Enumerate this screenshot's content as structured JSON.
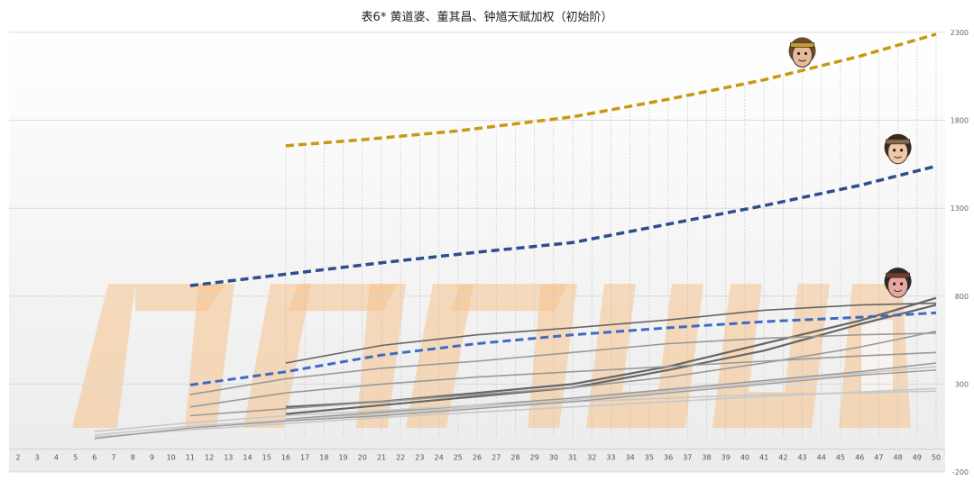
{
  "chart_data": {
    "type": "line",
    "title": "表6* 黄道婆、董其昌、钟馗天赋加权（初始阶）",
    "xlabel": "",
    "ylabel": "",
    "ylim": [
      -200,
      2300
    ],
    "yticks": [
      2300,
      1800,
      1300,
      800,
      300,
      -200
    ],
    "x": [
      2,
      3,
      4,
      5,
      6,
      7,
      8,
      9,
      10,
      11,
      12,
      13,
      14,
      15,
      16,
      17,
      18,
      19,
      20,
      21,
      22,
      23,
      24,
      25,
      26,
      27,
      28,
      29,
      30,
      31,
      32,
      33,
      34,
      35,
      36,
      37,
      38,
      39,
      40,
      41,
      42,
      43,
      44,
      45,
      46,
      47,
      48,
      49,
      50
    ],
    "grid": "vertical dotted lines from x=16 to x=50 under the top series; horizontal gridlines at y ticks",
    "legend": "none",
    "watermark": "WANGYUWEN-style stylized orange watermark lettering (decorative)",
    "colors": {
      "gold": "#C8980F",
      "navy": "#2D4E8E",
      "blue": "#3F6AC4",
      "gray_dark": "#666666",
      "gray_mid": "#999999",
      "gray_light": "#C8C8C8"
    },
    "series": [
      {
        "color": "gold",
        "style": "dashed",
        "width": 3.5,
        "points": [
          [
            16,
            1655
          ],
          [
            20,
            1690
          ],
          [
            25,
            1740
          ],
          [
            31,
            1820
          ],
          [
            36,
            1920
          ],
          [
            41,
            2030
          ],
          [
            46,
            2165
          ],
          [
            50,
            2290
          ]
        ]
      },
      {
        "color": "navy",
        "style": "dashed",
        "width": 3.5,
        "points": [
          [
            11,
            860
          ],
          [
            16,
            925
          ],
          [
            21,
            990
          ],
          [
            26,
            1050
          ],
          [
            31,
            1105
          ],
          [
            36,
            1210
          ],
          [
            41,
            1315
          ],
          [
            46,
            1430
          ],
          [
            50,
            1540
          ]
        ]
      },
      {
        "color": "blue",
        "style": "dashed",
        "width": 3,
        "points": [
          [
            11,
            295
          ],
          [
            16,
            370
          ],
          [
            21,
            465
          ],
          [
            26,
            530
          ],
          [
            31,
            580
          ],
          [
            36,
            620
          ],
          [
            41,
            655
          ],
          [
            46,
            680
          ],
          [
            50,
            705
          ]
        ]
      },
      {
        "color": "gray_dark",
        "style": "solid",
        "width": 1.6,
        "points": [
          [
            16,
            420
          ],
          [
            21,
            520
          ],
          [
            26,
            580
          ],
          [
            31,
            620
          ],
          [
            36,
            665
          ],
          [
            41,
            720
          ],
          [
            46,
            750
          ],
          [
            50,
            760
          ]
        ]
      },
      {
        "color": "gray_dark",
        "style": "solid",
        "width": 2.2,
        "points": [
          [
            16,
            170
          ],
          [
            21,
            200
          ],
          [
            26,
            250
          ],
          [
            31,
            300
          ],
          [
            36,
            400
          ],
          [
            41,
            530
          ],
          [
            46,
            660
          ],
          [
            50,
            790
          ]
        ]
      },
      {
        "color": "gray_dark",
        "style": "solid",
        "width": 2.2,
        "points": [
          [
            16,
            130
          ],
          [
            21,
            180
          ],
          [
            26,
            230
          ],
          [
            31,
            280
          ],
          [
            36,
            380
          ],
          [
            41,
            490
          ],
          [
            46,
            640
          ],
          [
            50,
            750
          ]
        ]
      },
      {
        "color": "gray_mid",
        "style": "solid",
        "width": 1.6,
        "points": [
          [
            11,
            240
          ],
          [
            16,
            330
          ],
          [
            21,
            390
          ],
          [
            26,
            430
          ],
          [
            31,
            480
          ],
          [
            36,
            530
          ],
          [
            41,
            560
          ],
          [
            46,
            580
          ],
          [
            50,
            590
          ]
        ]
      },
      {
        "color": "gray_mid",
        "style": "solid",
        "width": 1.6,
        "points": [
          [
            11,
            170
          ],
          [
            16,
            250
          ],
          [
            21,
            300
          ],
          [
            26,
            340
          ],
          [
            31,
            370
          ],
          [
            36,
            400
          ],
          [
            41,
            430
          ],
          [
            46,
            460
          ],
          [
            50,
            480
          ]
        ]
      },
      {
        "color": "gray_mid",
        "style": "solid",
        "width": 1.6,
        "points": [
          [
            11,
            120
          ],
          [
            16,
            160
          ],
          [
            21,
            200
          ],
          [
            26,
            240
          ],
          [
            31,
            280
          ],
          [
            36,
            340
          ],
          [
            41,
            420
          ],
          [
            46,
            510
          ],
          [
            50,
            600
          ]
        ]
      },
      {
        "color": "gray_mid",
        "style": "solid",
        "width": 1.6,
        "points": [
          [
            16,
            100
          ],
          [
            21,
            140
          ],
          [
            26,
            180
          ],
          [
            31,
            220
          ],
          [
            36,
            270
          ],
          [
            41,
            320
          ],
          [
            46,
            370
          ],
          [
            50,
            420
          ]
        ]
      },
      {
        "color": "gray_light",
        "style": "solid",
        "width": 1.6,
        "points": [
          [
            6,
            10
          ],
          [
            11,
            60
          ],
          [
            16,
            95
          ],
          [
            21,
            130
          ],
          [
            26,
            170
          ],
          [
            31,
            210
          ],
          [
            36,
            260
          ],
          [
            41,
            310
          ],
          [
            46,
            360
          ],
          [
            50,
            400
          ]
        ]
      },
      {
        "color": "gray_light",
        "style": "solid",
        "width": 1.6,
        "points": [
          [
            6,
            0
          ],
          [
            11,
            40
          ],
          [
            16,
            75
          ],
          [
            21,
            110
          ],
          [
            26,
            140
          ],
          [
            31,
            170
          ],
          [
            36,
            200
          ],
          [
            41,
            230
          ],
          [
            46,
            255
          ],
          [
            50,
            275
          ]
        ]
      },
      {
        "color": "gray_light",
        "style": "solid",
        "width": 1.6,
        "points": [
          [
            6,
            30
          ],
          [
            11,
            80
          ],
          [
            16,
            120
          ],
          [
            21,
            150
          ],
          [
            26,
            180
          ],
          [
            31,
            200
          ],
          [
            36,
            220
          ],
          [
            41,
            240
          ],
          [
            46,
            250
          ],
          [
            50,
            260
          ]
        ]
      },
      {
        "color": "gray_mid",
        "style": "solid",
        "width": 1.4,
        "points": [
          [
            6,
            -10
          ],
          [
            11,
            50
          ],
          [
            16,
            90
          ],
          [
            21,
            120
          ],
          [
            26,
            160
          ],
          [
            31,
            200
          ],
          [
            36,
            250
          ],
          [
            41,
            300
          ],
          [
            46,
            350
          ],
          [
            50,
            380
          ]
        ]
      }
    ],
    "annotations": [
      {
        "type": "avatar",
        "name": "portrait-gold-series",
        "at": [
          43,
          2180
        ]
      },
      {
        "type": "avatar",
        "name": "portrait-navy-series",
        "at": [
          48,
          1630
        ]
      },
      {
        "type": "avatar",
        "name": "portrait-gray-top",
        "at": [
          48,
          870
        ]
      }
    ]
  }
}
